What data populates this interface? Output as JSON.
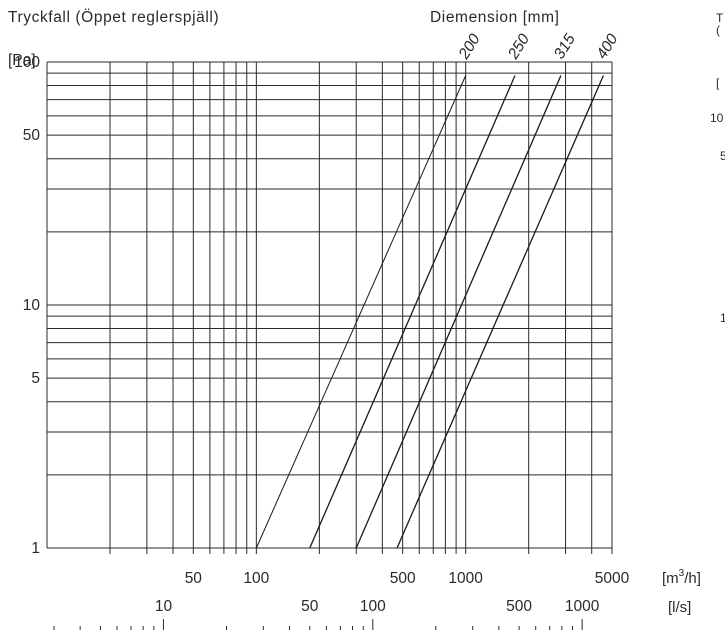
{
  "title": "Tryckfall (Öppet reglerspjäll)",
  "dimension_title": "Diemension [mm]",
  "cut_text": {
    "line1": "T",
    "line2": "(",
    "line3": "[",
    "tick_100": "10",
    "tick_50": "5",
    "tick_10": "1"
  },
  "chart_data": {
    "type": "line",
    "title": "Tryckfall (Öppet reglerspjäll)",
    "ylabel": "[Pa]",
    "xlabel": "[m³/h]",
    "xlabel_secondary": "[l/s]",
    "x_scale": "log",
    "y_scale": "log",
    "xlim": [
      10,
      5000
    ],
    "ylim": [
      1,
      100
    ],
    "grid": true,
    "y_ticks": [
      1,
      5,
      10,
      50,
      100
    ],
    "y_tick_labels": [
      "1",
      "5",
      "10",
      "50",
      "100"
    ],
    "x_ticks": [
      50,
      100,
      500,
      1000,
      5000
    ],
    "x_tick_labels": [
      "50",
      "100",
      "500",
      "1000",
      "5000"
    ],
    "x2_ticks": [
      10,
      50,
      100,
      500,
      1000
    ],
    "x2_tick_labels": [
      "10",
      "50",
      "100",
      "500",
      "1000"
    ],
    "legend_title": "Diemension [mm]",
    "series": [
      {
        "name": "200",
        "x": [
          100,
          1000
        ],
        "y": [
          1,
          88
        ]
      },
      {
        "name": "250",
        "x": [
          180,
          1720
        ],
        "y": [
          1,
          88
        ]
      },
      {
        "name": "315",
        "x": [
          300,
          2850
        ],
        "y": [
          1,
          88
        ]
      },
      {
        "name": "400",
        "x": [
          470,
          4550
        ],
        "y": [
          1,
          88
        ]
      }
    ]
  }
}
